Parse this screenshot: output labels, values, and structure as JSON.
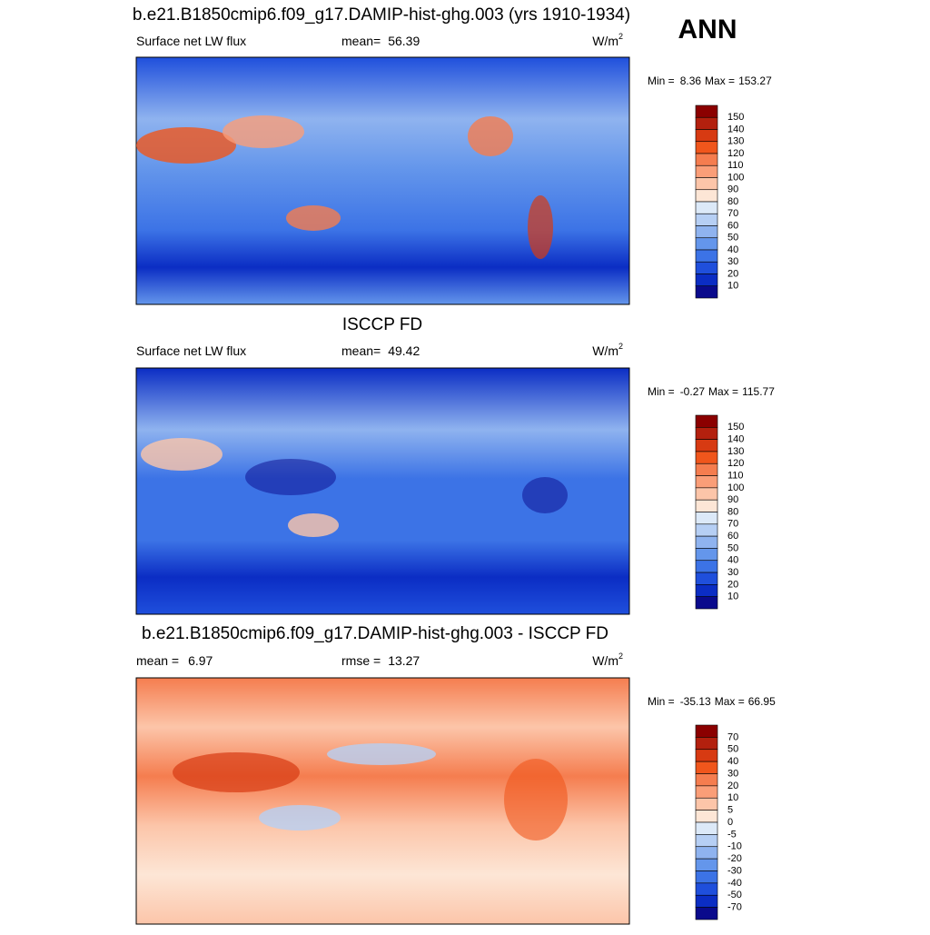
{
  "season": "ANN",
  "colorbar_colors": [
    "#8b0000",
    "#b3200e",
    "#d73a12",
    "#f0561c",
    "#f57d4f",
    "#fa9e78",
    "#fcc5a9",
    "#fde6d6",
    "#dce9f8",
    "#b6cff4",
    "#8fb3ef",
    "#6496eb",
    "#3c73e6",
    "#1f4fdc",
    "#0b2dc4",
    "#0a0a8c"
  ],
  "panels": [
    {
      "title": "b.e21.B1850cmip6.f09_g17.DAMIP-hist-ghg.003 (yrs 1910-1934)",
      "left_label": "Surface net LW flux",
      "stat_label": "mean=",
      "stat_value": 56.39,
      "units": "W/m",
      "units_sup": "2",
      "min_label": "Min =",
      "min": 8.36,
      "max_label": "Max =",
      "max": 153.27,
      "levels": [
        150,
        140,
        130,
        120,
        110,
        100,
        90,
        80,
        70,
        60,
        50,
        40,
        30,
        20,
        10
      ]
    },
    {
      "title": "ISCCP FD",
      "left_label": "Surface net LW flux",
      "stat_label": "mean=",
      "stat_value": 49.42,
      "units": "W/m",
      "units_sup": "2",
      "min_label": "Min =",
      "min": -0.27,
      "max_label": "Max =",
      "max": 115.77,
      "levels": [
        150,
        140,
        130,
        120,
        110,
        100,
        90,
        80,
        70,
        60,
        50,
        40,
        30,
        20,
        10
      ]
    },
    {
      "title": "b.e21.B1850cmip6.f09_g17.DAMIP-hist-ghg.003 - ISCCP FD",
      "left_label": "mean =",
      "left_value": 6.97,
      "stat_label": "rmse =",
      "stat_value": 13.27,
      "units": "W/m",
      "units_sup": "2",
      "min_label": "Min =",
      "min": -35.13,
      "max_label": "Max =",
      "max": 66.95,
      "levels": [
        70,
        50,
        40,
        30,
        20,
        10,
        5,
        0,
        -5,
        -10,
        -20,
        -30,
        -40,
        -50,
        -70
      ]
    }
  ]
}
